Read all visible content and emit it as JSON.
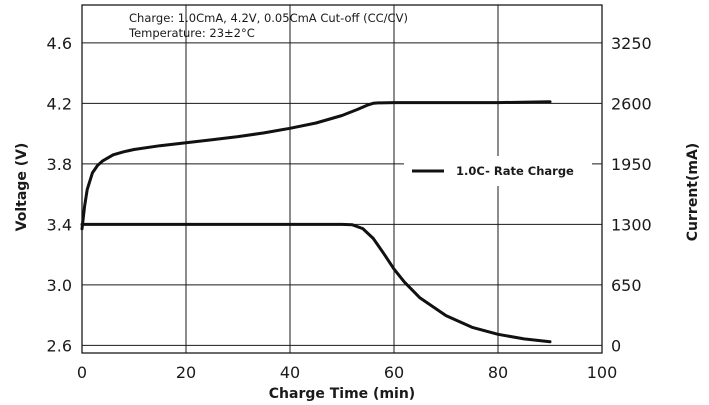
{
  "chart_data": {
    "type": "line",
    "notes": [
      "Charge: 1.0CmA, 4.2V, 0.05CmA Cut-off (CC/CV)",
      "Temperature: 23±2°C"
    ],
    "xlabel": "Charge Time (min)",
    "ylabel_left": "Voltage (V)",
    "ylabel_right": "Current(mA)",
    "xlim": [
      0,
      100
    ],
    "ylim_left": [
      2.55,
      4.85
    ],
    "ylim_right": [
      -81.25,
      3656.25
    ],
    "x_ticks": [
      "0",
      "20",
      "40",
      "60",
      "80",
      "100"
    ],
    "x_tick_values": [
      0,
      20,
      40,
      60,
      80,
      100
    ],
    "y_ticks_left": [
      "2.6",
      "3.0",
      "3.4",
      "3.8",
      "4.2",
      "4.6"
    ],
    "y_tick_values_left": [
      2.6,
      3.0,
      3.4,
      3.8,
      4.2,
      4.6
    ],
    "y_ticks_right": [
      "0",
      "650",
      "1300",
      "1950",
      "2600",
      "3250"
    ],
    "y_tick_values_right": [
      0,
      650,
      1300,
      1950,
      2600,
      3250
    ],
    "grid": true,
    "legend": {
      "label": "1.0C- Rate Charge",
      "placement": "right"
    },
    "series": [
      {
        "axis": "left",
        "x": [
          0,
          0.5,
          1,
          2,
          3,
          4,
          5,
          6,
          8,
          10,
          15,
          20,
          25,
          30,
          35,
          40,
          45,
          50,
          53,
          55,
          56,
          57,
          60,
          70,
          80,
          90
        ],
        "y": [
          3.37,
          3.52,
          3.63,
          3.74,
          3.79,
          3.82,
          3.84,
          3.86,
          3.88,
          3.895,
          3.92,
          3.94,
          3.96,
          3.98,
          4.005,
          4.035,
          4.07,
          4.12,
          4.16,
          4.19,
          4.2,
          4.203,
          4.205,
          4.205,
          4.205,
          4.21
        ]
      },
      {
        "axis": "right",
        "x": [
          0,
          10,
          20,
          30,
          40,
          45,
          50,
          52,
          54,
          56,
          58,
          60,
          62,
          65,
          70,
          75,
          80,
          85,
          90
        ],
        "y": [
          1300,
          1300,
          1300,
          1300,
          1300,
          1300,
          1300,
          1296,
          1255,
          1150,
          990,
          820,
          680,
          510,
          320,
          195,
          120,
          70,
          40
        ]
      }
    ]
  }
}
